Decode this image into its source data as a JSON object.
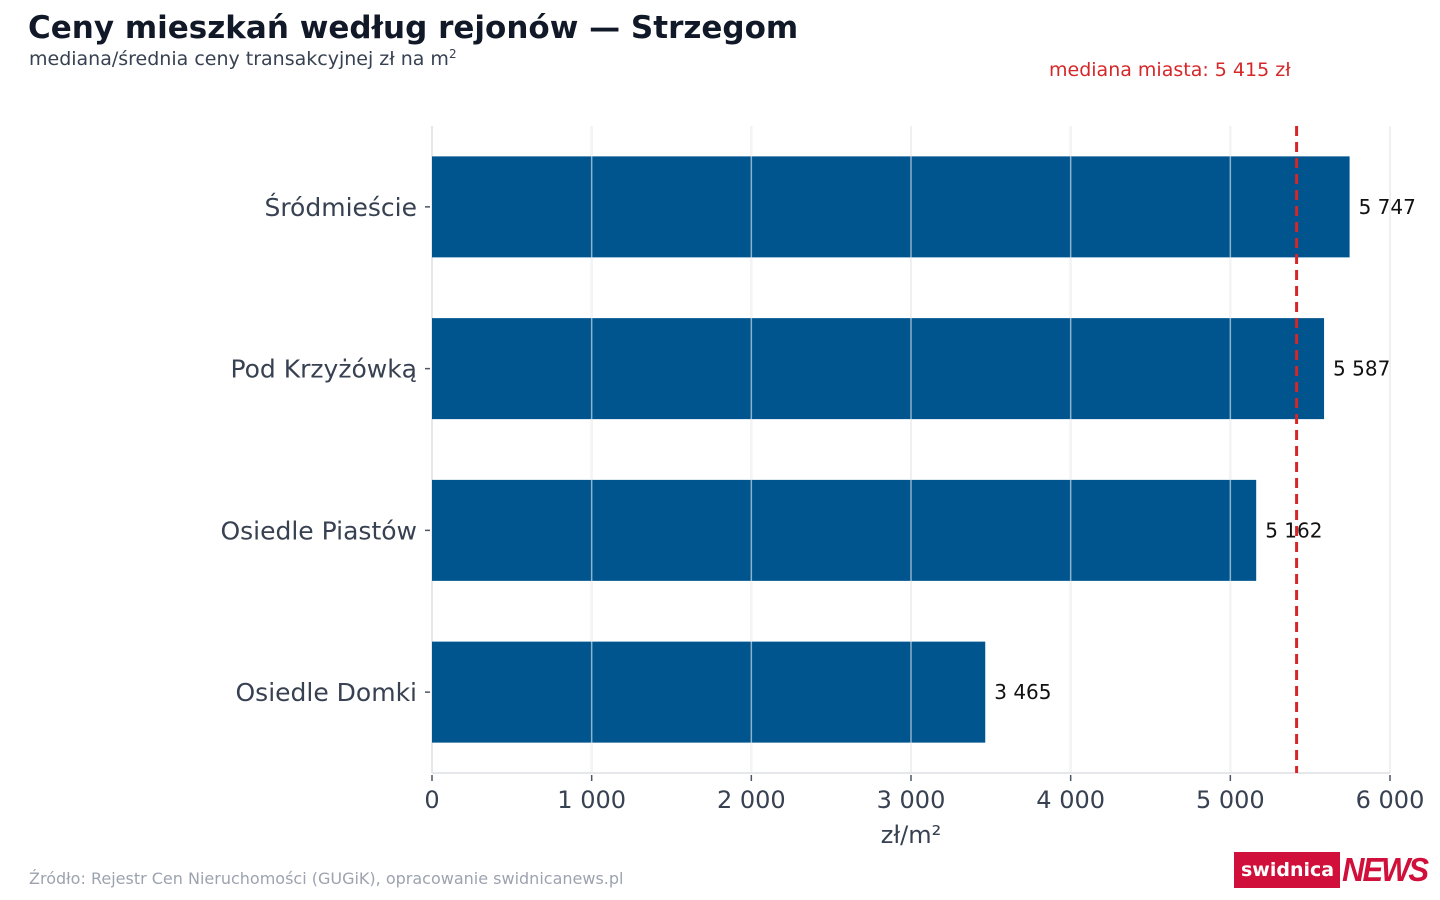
{
  "title": "Ceny mieszkań według rejonów — Strzegom",
  "subtitle": "mediana/średnia ceny transakcyjnej zł na m",
  "subtitle_sup": "2",
  "source": "Źródło: Rejestr Cen Nieruchomości (GUGiK), opracowanie swidnicanews.pl",
  "logo": {
    "part1": "swidnica",
    "part2": "NEWS"
  },
  "chart_data": {
    "type": "bar",
    "orientation": "horizontal",
    "categories": [
      "Śródmieście",
      "Pod Krzyżówką",
      "Osiedle Piastów",
      "Osiedle Domki"
    ],
    "values": [
      5747,
      5587,
      5162,
      3465
    ],
    "value_labels": [
      "5 747",
      "5 587",
      "5 162",
      "3 465"
    ],
    "xlabel": "zł/m²",
    "xlim": [
      0,
      6000
    ],
    "ticks": [
      0,
      1000,
      2000,
      3000,
      4000,
      5000,
      6000
    ],
    "tick_labels": [
      "0",
      "1 000",
      "2 000",
      "3 000",
      "4 000",
      "5 000",
      "6 000"
    ],
    "grid": true,
    "reference_line": {
      "value": 5415,
      "label": "mediana miasta: 5 415 zł",
      "color": "#d62728",
      "style": "dashed"
    },
    "bar_color": "#00558f",
    "grid_color": "#e5e7eb"
  }
}
